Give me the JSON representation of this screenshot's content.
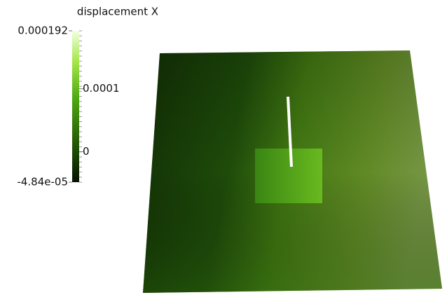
{
  "colorbar": {
    "title": "displacement X",
    "range": [
      -4.84e-05,
      0.000192
    ],
    "ticks": [
      {
        "value": 0.000192,
        "label": "0.000192"
      },
      0.0001,
      0,
      {
        "value": -4.84e-05,
        "label": "-4.84e-05"
      }
    ]
  }
}
